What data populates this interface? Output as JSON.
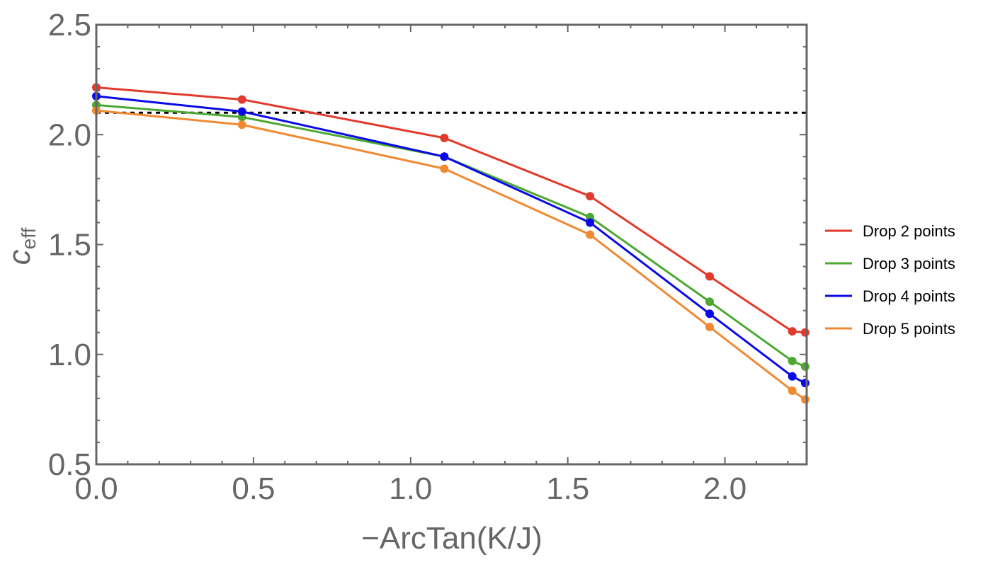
{
  "chart_data": {
    "type": "line",
    "title": "",
    "xlabel": "−ArcTan(K/J)",
    "ylabel_main": "c",
    "ylabel_sub": "eff",
    "xlim": [
      0.0,
      2.26
    ],
    "ylim": [
      0.5,
      2.5
    ],
    "xticks": [
      0.0,
      0.5,
      1.0,
      1.5,
      2.0
    ],
    "xtick_labels": [
      "0.0",
      "0.5",
      "1.0",
      "1.5",
      "2.0"
    ],
    "yticks": [
      0.5,
      1.0,
      1.5,
      2.0,
      2.5
    ],
    "ytick_labels": [
      "0.5",
      "1.0",
      "1.5",
      "2.0",
      "2.5"
    ],
    "reference_line": {
      "y": 2.1,
      "style": "dashed",
      "color": "#000000"
    },
    "x": [
      0.0,
      0.4636,
      1.1071,
      1.5708,
      1.9513,
      2.2143,
      2.2553
    ],
    "series": [
      {
        "name": "Drop 2 points",
        "color": "#e23a2c",
        "values": [
          2.215,
          2.16,
          1.985,
          1.72,
          1.355,
          1.105,
          1.1
        ]
      },
      {
        "name": "Drop 3 points",
        "color": "#4ca832",
        "values": [
          2.135,
          2.08,
          1.9,
          1.625,
          1.24,
          0.97,
          0.945
        ]
      },
      {
        "name": "Drop 4 points",
        "color": "#0a0ae6",
        "values": [
          2.175,
          2.105,
          1.9,
          1.6,
          1.185,
          0.9,
          0.87
        ]
      },
      {
        "name": "Drop 5 points",
        "color": "#f08a32",
        "values": [
          2.11,
          2.045,
          1.845,
          1.545,
          1.125,
          0.835,
          0.795
        ]
      }
    ],
    "legend_position": "right",
    "grid": false
  }
}
